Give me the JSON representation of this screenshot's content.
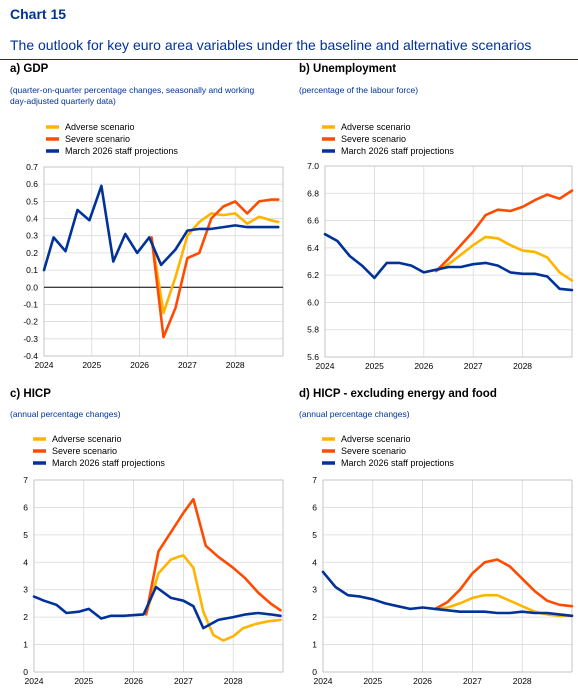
{
  "header": {
    "label": "Chart 15",
    "title": "The outlook for key euro area variables under the baseline and alternative scenarios"
  },
  "colors": {
    "adverse": "#FFB400",
    "severe": "#FF4B00",
    "baseline": "#003299",
    "subtitle": "#003299",
    "grid": "#d9d9d9"
  },
  "chart_data": [
    {
      "type": "line",
      "title": "a) GDP",
      "subtitle_lines": [
        "(quarter-on-quarter percentage changes, seasonally and working",
        "day-adjusted quarterly data)"
      ],
      "ylim": [
        -0.4,
        0.7
      ],
      "yticks": [
        "-0.4",
        "-0.3",
        "-0.2",
        "-0.1",
        "0.0",
        "0.1",
        "0.2",
        "0.3",
        "0.4",
        "0.5",
        "0.6",
        "0.7"
      ],
      "xlim": [
        2024.0,
        2029.0
      ],
      "xticks": [
        "2024",
        "2025",
        "2026",
        "2027",
        "2028"
      ],
      "legend": [
        "Adverse scenario",
        "Severe scenario",
        "March 2026 staff projections"
      ],
      "zero_line": true,
      "series": [
        {
          "name": "Adverse scenario",
          "key": "adverse",
          "x": [
            2026.25,
            2026.5,
            2026.75,
            2027.0,
            2027.25,
            2027.5,
            2027.75,
            2028.0,
            2028.25,
            2028.5,
            2028.75,
            2028.9
          ],
          "y": [
            0.29,
            -0.15,
            0.06,
            0.3,
            0.38,
            0.43,
            0.42,
            0.43,
            0.37,
            0.41,
            0.39,
            0.38
          ]
        },
        {
          "name": "Severe scenario",
          "key": "severe",
          "x": [
            2026.25,
            2026.5,
            2026.75,
            2027.0,
            2027.25,
            2027.5,
            2027.75,
            2028.0,
            2028.25,
            2028.5,
            2028.75,
            2028.9
          ],
          "y": [
            0.29,
            -0.29,
            -0.12,
            0.17,
            0.2,
            0.4,
            0.47,
            0.5,
            0.43,
            0.5,
            0.51,
            0.51
          ]
        },
        {
          "name": "March 2026 staff projections",
          "key": "baseline",
          "x": [
            2024.0,
            2024.2,
            2024.45,
            2024.7,
            2024.95,
            2025.2,
            2025.45,
            2025.7,
            2025.95,
            2026.2,
            2026.45,
            2026.75,
            2027.0,
            2027.25,
            2027.5,
            2027.75,
            2028.0,
            2028.25,
            2028.5,
            2028.75,
            2028.9
          ],
          "y": [
            0.1,
            0.29,
            0.21,
            0.45,
            0.39,
            0.59,
            0.15,
            0.31,
            0.2,
            0.29,
            0.13,
            0.22,
            0.33,
            0.34,
            0.34,
            0.35,
            0.36,
            0.35,
            0.35,
            0.35,
            0.35
          ]
        }
      ]
    },
    {
      "type": "line",
      "title": "b) Unemployment",
      "subtitle_lines": [
        "(percentage of the labour force)"
      ],
      "ylim": [
        5.6,
        7.0
      ],
      "yticks": [
        "5.6",
        "5.8",
        "6.0",
        "6.2",
        "6.4",
        "6.6",
        "6.8",
        "7.0"
      ],
      "xlim": [
        2024.0,
        2029.0
      ],
      "xticks": [
        "2024",
        "2025",
        "2026",
        "2027",
        "2028"
      ],
      "legend": [
        "Adverse scenario",
        "Severe scenario",
        "March 2026 staff projections"
      ],
      "zero_line": false,
      "series": [
        {
          "name": "Adverse scenario",
          "key": "adverse",
          "x": [
            2026.25,
            2026.5,
            2026.75,
            2027.0,
            2027.25,
            2027.5,
            2027.75,
            2028.0,
            2028.25,
            2028.5,
            2028.75,
            2029.0
          ],
          "y": [
            6.23,
            6.28,
            6.35,
            6.42,
            6.48,
            6.47,
            6.42,
            6.38,
            6.37,
            6.33,
            6.22,
            6.16
          ]
        },
        {
          "name": "Severe scenario",
          "key": "severe",
          "x": [
            2026.25,
            2026.5,
            2026.75,
            2027.0,
            2027.25,
            2027.5,
            2027.75,
            2028.0,
            2028.25,
            2028.5,
            2028.75,
            2029.0
          ],
          "y": [
            6.23,
            6.32,
            6.42,
            6.52,
            6.64,
            6.68,
            6.67,
            6.7,
            6.75,
            6.79,
            6.76,
            6.82
          ]
        },
        {
          "name": "March 2026 staff projections",
          "key": "baseline",
          "x": [
            2024.0,
            2024.25,
            2024.5,
            2024.75,
            2025.0,
            2025.25,
            2025.5,
            2025.75,
            2026.0,
            2026.25,
            2026.5,
            2026.75,
            2027.0,
            2027.25,
            2027.5,
            2027.75,
            2028.0,
            2028.25,
            2028.5,
            2028.75,
            2029.0
          ],
          "y": [
            6.5,
            6.45,
            6.34,
            6.27,
            6.18,
            6.29,
            6.29,
            6.27,
            6.22,
            6.24,
            6.26,
            6.26,
            6.28,
            6.29,
            6.27,
            6.22,
            6.21,
            6.21,
            6.19,
            6.1,
            6.09
          ]
        }
      ]
    },
    {
      "type": "line",
      "title": "c) HICP",
      "subtitle_lines": [
        "(annual percentage changes)"
      ],
      "ylim": [
        0,
        7
      ],
      "yticks": [
        "0",
        "1",
        "2",
        "3",
        "4",
        "5",
        "6",
        "7"
      ],
      "xlim": [
        2024.0,
        2029.0
      ],
      "xticks": [
        "2024",
        "2025",
        "2026",
        "2027",
        "2028"
      ],
      "legend": [
        "Adverse scenario",
        "Severe scenario",
        "March 2026 staff projections"
      ],
      "zero_line": false,
      "series": [
        {
          "name": "Adverse scenario",
          "key": "adverse",
          "x": [
            2026.25,
            2026.5,
            2026.75,
            2026.9,
            2027.0,
            2027.2,
            2027.4,
            2027.6,
            2027.8,
            2028.0,
            2028.2,
            2028.45,
            2028.7,
            2028.95
          ],
          "y": [
            2.1,
            3.6,
            4.1,
            4.2,
            4.25,
            3.8,
            2.2,
            1.35,
            1.15,
            1.3,
            1.6,
            1.75,
            1.85,
            1.9
          ]
        },
        {
          "name": "Severe scenario",
          "key": "severe",
          "x": [
            2026.25,
            2026.5,
            2026.75,
            2027.0,
            2027.2,
            2027.45,
            2027.7,
            2028.0,
            2028.25,
            2028.5,
            2028.75,
            2028.95
          ],
          "y": [
            2.1,
            4.4,
            5.1,
            5.8,
            6.3,
            4.6,
            4.2,
            3.8,
            3.4,
            2.9,
            2.5,
            2.25
          ]
        },
        {
          "name": "March 2026 staff projections",
          "key": "baseline",
          "x": [
            2024.0,
            2024.2,
            2024.45,
            2024.65,
            2024.9,
            2025.1,
            2025.35,
            2025.55,
            2025.8,
            2026.2,
            2026.45,
            2026.75,
            2027.0,
            2027.2,
            2027.4,
            2027.7,
            2028.0,
            2028.25,
            2028.5,
            2028.75,
            2028.95
          ],
          "y": [
            2.75,
            2.6,
            2.45,
            2.15,
            2.2,
            2.3,
            1.95,
            2.05,
            2.05,
            2.1,
            3.1,
            2.7,
            2.6,
            2.4,
            1.6,
            1.9,
            2.0,
            2.1,
            2.15,
            2.1,
            2.05
          ]
        }
      ]
    },
    {
      "type": "line",
      "title": "d) HICP - excluding energy and food",
      "subtitle_lines": [
        "(annual percentage changes)"
      ],
      "ylim": [
        0,
        7
      ],
      "yticks": [
        "0",
        "1",
        "2",
        "3",
        "4",
        "5",
        "6",
        "7"
      ],
      "xlim": [
        2024.0,
        2029.0
      ],
      "xticks": [
        "2024",
        "2025",
        "2026",
        "2027",
        "2028"
      ],
      "legend": [
        "Adverse scenario",
        "Severe scenario",
        "March 2026 staff projections"
      ],
      "zero_line": false,
      "series": [
        {
          "name": "Adverse scenario",
          "key": "adverse",
          "x": [
            2026.25,
            2026.5,
            2026.75,
            2027.0,
            2027.25,
            2027.5,
            2027.75,
            2028.0,
            2028.25,
            2028.5,
            2028.75,
            2029.0
          ],
          "y": [
            2.3,
            2.35,
            2.5,
            2.7,
            2.8,
            2.8,
            2.6,
            2.4,
            2.2,
            2.1,
            2.05,
            2.05
          ]
        },
        {
          "name": "Severe scenario",
          "key": "severe",
          "x": [
            2026.25,
            2026.5,
            2026.75,
            2027.0,
            2027.25,
            2027.5,
            2027.75,
            2028.0,
            2028.25,
            2028.5,
            2028.75,
            2029.0
          ],
          "y": [
            2.3,
            2.55,
            3.0,
            3.6,
            4.0,
            4.1,
            3.85,
            3.4,
            2.95,
            2.6,
            2.45,
            2.4
          ]
        },
        {
          "name": "March 2026 staff projections",
          "key": "baseline",
          "x": [
            2024.0,
            2024.25,
            2024.5,
            2024.75,
            2025.0,
            2025.25,
            2025.5,
            2025.75,
            2026.0,
            2026.25,
            2026.5,
            2026.75,
            2027.0,
            2027.25,
            2027.5,
            2027.75,
            2028.0,
            2028.25,
            2028.5,
            2028.75,
            2029.0
          ],
          "y": [
            3.65,
            3.1,
            2.8,
            2.75,
            2.65,
            2.5,
            2.4,
            2.3,
            2.35,
            2.3,
            2.25,
            2.2,
            2.2,
            2.2,
            2.15,
            2.15,
            2.2,
            2.15,
            2.15,
            2.1,
            2.05
          ]
        }
      ]
    }
  ]
}
